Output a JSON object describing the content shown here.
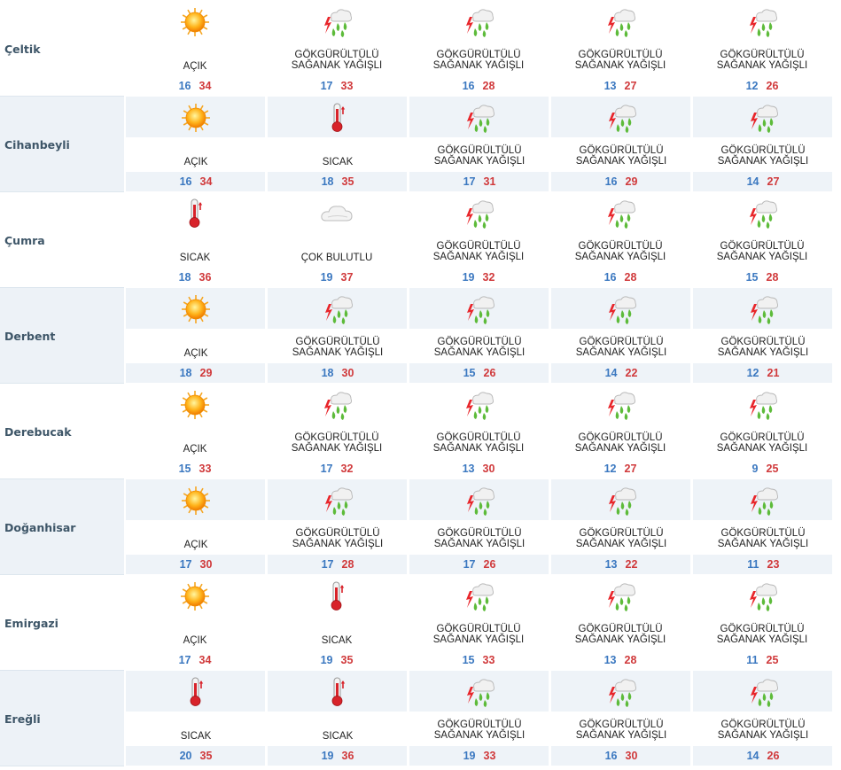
{
  "rows": [
    {
      "city": "Çeltik",
      "days": [
        {
          "icon": "sun-icon",
          "cond": [
            "AÇIK"
          ],
          "lo": "16",
          "hi": "34"
        },
        {
          "icon": "thunder-rain-icon",
          "cond": [
            "GÖKGÜRÜLTÜLÜ",
            "SAĞANAK YAĞIŞLI"
          ],
          "lo": "17",
          "hi": "33"
        },
        {
          "icon": "thunder-rain-icon",
          "cond": [
            "GÖKGÜRÜLTÜLÜ",
            "SAĞANAK YAĞIŞLI"
          ],
          "lo": "16",
          "hi": "28"
        },
        {
          "icon": "thunder-rain-icon",
          "cond": [
            "GÖKGÜRÜLTÜLÜ",
            "SAĞANAK YAĞIŞLI"
          ],
          "lo": "13",
          "hi": "27"
        },
        {
          "icon": "thunder-rain-icon",
          "cond": [
            "GÖKGÜRÜLTÜLÜ",
            "SAĞANAK YAĞIŞLI"
          ],
          "lo": "12",
          "hi": "26"
        }
      ]
    },
    {
      "city": "Cihanbeyli",
      "days": [
        {
          "icon": "sun-icon",
          "cond": [
            "AÇIK"
          ],
          "lo": "16",
          "hi": "34"
        },
        {
          "icon": "thermometer-icon",
          "cond": [
            "SICAK"
          ],
          "lo": "18",
          "hi": "35"
        },
        {
          "icon": "thunder-rain-icon",
          "cond": [
            "GÖKGÜRÜLTÜLÜ",
            "SAĞANAK YAĞIŞLI"
          ],
          "lo": "17",
          "hi": "31"
        },
        {
          "icon": "thunder-rain-icon",
          "cond": [
            "GÖKGÜRÜLTÜLÜ",
            "SAĞANAK YAĞIŞLI"
          ],
          "lo": "16",
          "hi": "29"
        },
        {
          "icon": "thunder-rain-icon",
          "cond": [
            "GÖKGÜRÜLTÜLÜ",
            "SAĞANAK YAĞIŞLI"
          ],
          "lo": "14",
          "hi": "27"
        }
      ]
    },
    {
      "city": "Çumra",
      "days": [
        {
          "icon": "thermometer-icon",
          "cond": [
            "SICAK"
          ],
          "lo": "18",
          "hi": "36"
        },
        {
          "icon": "cloud-icon",
          "cond": [
            "ÇOK BULUTLU"
          ],
          "lo": "19",
          "hi": "37"
        },
        {
          "icon": "thunder-rain-icon",
          "cond": [
            "GÖKGÜRÜLTÜLÜ",
            "SAĞANAK YAĞIŞLI"
          ],
          "lo": "19",
          "hi": "32"
        },
        {
          "icon": "thunder-rain-icon",
          "cond": [
            "GÖKGÜRÜLTÜLÜ",
            "SAĞANAK YAĞIŞLI"
          ],
          "lo": "16",
          "hi": "28"
        },
        {
          "icon": "thunder-rain-icon",
          "cond": [
            "GÖKGÜRÜLTÜLÜ",
            "SAĞANAK YAĞIŞLI"
          ],
          "lo": "15",
          "hi": "28"
        }
      ]
    },
    {
      "city": "Derbent",
      "days": [
        {
          "icon": "sun-icon",
          "cond": [
            "AÇIK"
          ],
          "lo": "18",
          "hi": "29"
        },
        {
          "icon": "thunder-rain-icon",
          "cond": [
            "GÖKGÜRÜLTÜLÜ",
            "SAĞANAK YAĞIŞLI"
          ],
          "lo": "18",
          "hi": "30"
        },
        {
          "icon": "thunder-rain-icon",
          "cond": [
            "GÖKGÜRÜLTÜLÜ",
            "SAĞANAK YAĞIŞLI"
          ],
          "lo": "15",
          "hi": "26"
        },
        {
          "icon": "thunder-rain-icon",
          "cond": [
            "GÖKGÜRÜLTÜLÜ",
            "SAĞANAK YAĞIŞLI"
          ],
          "lo": "14",
          "hi": "22"
        },
        {
          "icon": "thunder-rain-icon",
          "cond": [
            "GÖKGÜRÜLTÜLÜ",
            "SAĞANAK YAĞIŞLI"
          ],
          "lo": "12",
          "hi": "21"
        }
      ]
    },
    {
      "city": "Derebucak",
      "days": [
        {
          "icon": "sun-icon",
          "cond": [
            "AÇIK"
          ],
          "lo": "15",
          "hi": "33"
        },
        {
          "icon": "thunder-rain-icon",
          "cond": [
            "GÖKGÜRÜLTÜLÜ",
            "SAĞANAK YAĞIŞLI"
          ],
          "lo": "17",
          "hi": "32"
        },
        {
          "icon": "thunder-rain-icon",
          "cond": [
            "GÖKGÜRÜLTÜLÜ",
            "SAĞANAK YAĞIŞLI"
          ],
          "lo": "13",
          "hi": "30"
        },
        {
          "icon": "thunder-rain-icon",
          "cond": [
            "GÖKGÜRÜLTÜLÜ",
            "SAĞANAK YAĞIŞLI"
          ],
          "lo": "12",
          "hi": "27"
        },
        {
          "icon": "thunder-rain-icon",
          "cond": [
            "GÖKGÜRÜLTÜLÜ",
            "SAĞANAK YAĞIŞLI"
          ],
          "lo": "9",
          "hi": "25"
        }
      ]
    },
    {
      "city": "Doğanhisar",
      "days": [
        {
          "icon": "sun-icon",
          "cond": [
            "AÇIK"
          ],
          "lo": "17",
          "hi": "30"
        },
        {
          "icon": "thunder-rain-icon",
          "cond": [
            "GÖKGÜRÜLTÜLÜ",
            "SAĞANAK YAĞIŞLI"
          ],
          "lo": "17",
          "hi": "28"
        },
        {
          "icon": "thunder-rain-icon",
          "cond": [
            "GÖKGÜRÜLTÜLÜ",
            "SAĞANAK YAĞIŞLI"
          ],
          "lo": "17",
          "hi": "26"
        },
        {
          "icon": "thunder-rain-icon",
          "cond": [
            "GÖKGÜRÜLTÜLÜ",
            "SAĞANAK YAĞIŞLI"
          ],
          "lo": "13",
          "hi": "22"
        },
        {
          "icon": "thunder-rain-icon",
          "cond": [
            "GÖKGÜRÜLTÜLÜ",
            "SAĞANAK YAĞIŞLI"
          ],
          "lo": "11",
          "hi": "23"
        }
      ]
    },
    {
      "city": "Emirgazi",
      "days": [
        {
          "icon": "sun-icon",
          "cond": [
            "AÇIK"
          ],
          "lo": "17",
          "hi": "34"
        },
        {
          "icon": "thermometer-icon",
          "cond": [
            "SICAK"
          ],
          "lo": "19",
          "hi": "35"
        },
        {
          "icon": "thunder-rain-icon",
          "cond": [
            "GÖKGÜRÜLTÜLÜ",
            "SAĞANAK YAĞIŞLI"
          ],
          "lo": "15",
          "hi": "33"
        },
        {
          "icon": "thunder-rain-icon",
          "cond": [
            "GÖKGÜRÜLTÜLÜ",
            "SAĞANAK YAĞIŞLI"
          ],
          "lo": "13",
          "hi": "28"
        },
        {
          "icon": "thunder-rain-icon",
          "cond": [
            "GÖKGÜRÜLTÜLÜ",
            "SAĞANAK YAĞIŞLI"
          ],
          "lo": "11",
          "hi": "25"
        }
      ]
    },
    {
      "city": "Ereğli",
      "days": [
        {
          "icon": "thermometer-icon",
          "cond": [
            "SICAK"
          ],
          "lo": "20",
          "hi": "35"
        },
        {
          "icon": "thermometer-icon",
          "cond": [
            "SICAK"
          ],
          "lo": "19",
          "hi": "36"
        },
        {
          "icon": "thunder-rain-icon",
          "cond": [
            "GÖKGÜRÜLTÜLÜ",
            "SAĞANAK YAĞIŞLI"
          ],
          "lo": "19",
          "hi": "33"
        },
        {
          "icon": "thunder-rain-icon",
          "cond": [
            "GÖKGÜRÜLTÜLÜ",
            "SAĞANAK YAĞIŞLI"
          ],
          "lo": "16",
          "hi": "30"
        },
        {
          "icon": "thunder-rain-icon",
          "cond": [
            "GÖKGÜRÜLTÜLÜ",
            "SAĞANAK YAĞIŞLI"
          ],
          "lo": "14",
          "hi": "26"
        }
      ]
    }
  ],
  "colors": {
    "low_temp": "#3b78c0",
    "high_temp": "#d0393b",
    "city_text": "#3e5668",
    "shade": "#eef3f8"
  }
}
